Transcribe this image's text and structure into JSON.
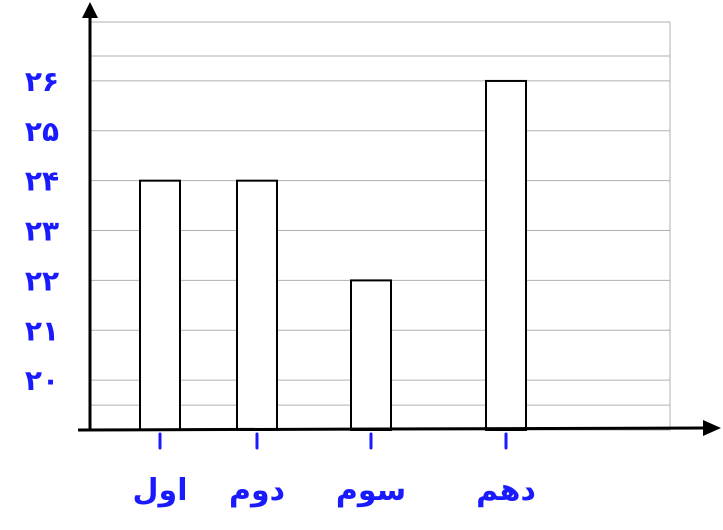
{
  "chart_data": {
    "type": "bar",
    "title": "",
    "xlabel": "",
    "ylabel": "",
    "categories": [
      "اول",
      "دوم",
      "سوم",
      "دهم"
    ],
    "values": [
      24,
      24,
      22,
      26
    ],
    "yticks": [
      "۲۰",
      "۲۱",
      "۲۲",
      "۲۳",
      "۲۴",
      "۲۵",
      "۲۶"
    ],
    "ytick_values": [
      20,
      21,
      22,
      23,
      24,
      25,
      26
    ],
    "ylim": [
      19,
      26.5
    ],
    "grid": true
  },
  "colors": {
    "ink": "#1a1aff",
    "axis": "#000000",
    "grid": "#b0b0b0",
    "bar_fill": "#ffffff",
    "bar_stroke": "#000000"
  }
}
